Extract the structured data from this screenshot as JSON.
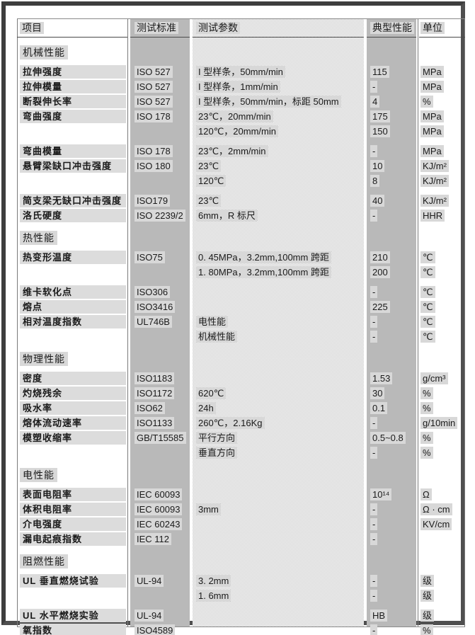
{
  "colors": {
    "column_band": "#b9b9b9",
    "text_highlight": "#d8d8d8",
    "label_bar": "#dcdcdc",
    "checker_dot": "#c9c9c9",
    "frame": "#4f4f4f",
    "divider_line": "#7a7a7a"
  },
  "table": {
    "header": {
      "columns": [
        "项目",
        "测试标准",
        "测试参数",
        "典型性能",
        "单位"
      ]
    },
    "sections": [
      {
        "title": "机械性能",
        "rows": [
          {
            "item": "拉伸强度",
            "standard": "ISO 527",
            "param": "I 型样条，50mm/min",
            "value": "115",
            "unit": "MPa"
          },
          {
            "item": "拉伸模量",
            "standard": "ISO 527",
            "param": "I 型样条，1mm/min",
            "value": "-",
            "unit": "MPa"
          },
          {
            "item": "断裂伸长率",
            "standard": "ISO 527",
            "param": "I 型样条，50mm/min，标距 50mm",
            "value": "4",
            "unit": "%"
          },
          {
            "item": "弯曲强度",
            "standard": "ISO 178",
            "param": "23℃，20mm/min",
            "value": "175",
            "unit": "MPa"
          },
          {
            "item": "",
            "standard": "",
            "param": "120℃，20mm/min",
            "value": "150",
            "unit": "MPa"
          },
          {
            "item": "弯曲模量",
            "standard": "ISO 178",
            "param": "23℃，2mm/min",
            "value": "-",
            "unit": "MPa",
            "gap_before": true
          },
          {
            "item": "悬臂梁缺口冲击强度",
            "standard": "ISO 180",
            "param": "23℃",
            "value": "10",
            "unit": "KJ/m²"
          },
          {
            "item": "",
            "standard": "",
            "param": "120℃",
            "value": "8",
            "unit": "KJ/m²"
          },
          {
            "item": "简支梁无缺口冲击强度",
            "standard": "ISO179",
            "param": "23℃",
            "value": "40",
            "unit": "KJ/m²",
            "gap_before": true
          },
          {
            "item": "洛氏硬度",
            "standard": "ISO 2239/2",
            "param": "6mm，R 标尺",
            "value": "-",
            "unit": "HHR"
          }
        ]
      },
      {
        "title": "热性能",
        "rows": [
          {
            "item": "热变形温度",
            "standard": "ISO75",
            "param": "0. 45MPa，3.2mm,100mm 跨距",
            "value": "210",
            "unit": "℃"
          },
          {
            "item": "",
            "standard": "",
            "param": "1. 80MPa，3.2mm,100mm 跨距",
            "value": "200",
            "unit": "℃"
          },
          {
            "item": "维卡软化点",
            "standard": "ISO306",
            "param": "",
            "value": "-",
            "unit": "℃",
            "gap_before": true
          },
          {
            "item": "熔点",
            "standard": "ISO3416",
            "param": "",
            "value": "225",
            "unit": "℃"
          },
          {
            "item": "相对温度指数",
            "standard": "UL746B",
            "param": "电性能",
            "value": "-",
            "unit": "℃"
          },
          {
            "item": "",
            "standard": "",
            "param": "机械性能",
            "value": "-",
            "unit": "℃"
          }
        ]
      },
      {
        "title": "物理性能",
        "rows": [
          {
            "item": "密度",
            "standard": "ISO1183",
            "param": "",
            "value": "1.53",
            "unit": "g/cm³"
          },
          {
            "item": "灼烧残余",
            "standard": "ISO1172",
            "param": "620℃",
            "value": "30",
            "unit": "%"
          },
          {
            "item": "吸水率",
            "standard": "ISO62",
            "param": "24h",
            "value": "0.1",
            "unit": "%"
          },
          {
            "item": "熔体流动速率",
            "standard": "ISO1133",
            "param": "260℃，2.16Kg",
            "value": "-",
            "unit": "g/10min"
          },
          {
            "item": "模塑收缩率",
            "standard": "GB/T15585",
            "param": "平行方向",
            "value": "0.5~0.8",
            "unit": "%"
          },
          {
            "item": "",
            "standard": "",
            "param": "垂直方向",
            "value": "-",
            "unit": "%"
          }
        ]
      },
      {
        "title": "电性能",
        "rows": [
          {
            "item": "表面电阻率",
            "standard": "IEC 60093",
            "param": "",
            "value": "10¹⁴",
            "unit": "Ω"
          },
          {
            "item": "体积电阻率",
            "standard": "IEC 60093",
            "param": "3mm",
            "value": "-",
            "unit": "Ω · cm"
          },
          {
            "item": "介电强度",
            "standard": "IEC 60243",
            "param": "",
            "value": "-",
            "unit": "KV/cm"
          },
          {
            "item": "漏电起痕指数",
            "standard": "IEC 112",
            "param": "",
            "value": "-",
            "unit": ""
          }
        ]
      },
      {
        "title": "阻燃性能",
        "rows": [
          {
            "item": "UL 垂直燃烧试验",
            "standard": "UL-94",
            "param": "3. 2mm",
            "value": "-",
            "unit": "级"
          },
          {
            "item": "",
            "standard": "",
            "param": "1. 6mm",
            "value": "-",
            "unit": "级"
          },
          {
            "item": "UL 水平燃烧实验",
            "standard": "UL-94",
            "param": "",
            "value": "HB",
            "unit": "级",
            "gap_before": true
          },
          {
            "item": "氧指数",
            "standard": "ISO4589",
            "param": "",
            "value": "-",
            "unit": "%"
          }
        ]
      }
    ]
  }
}
